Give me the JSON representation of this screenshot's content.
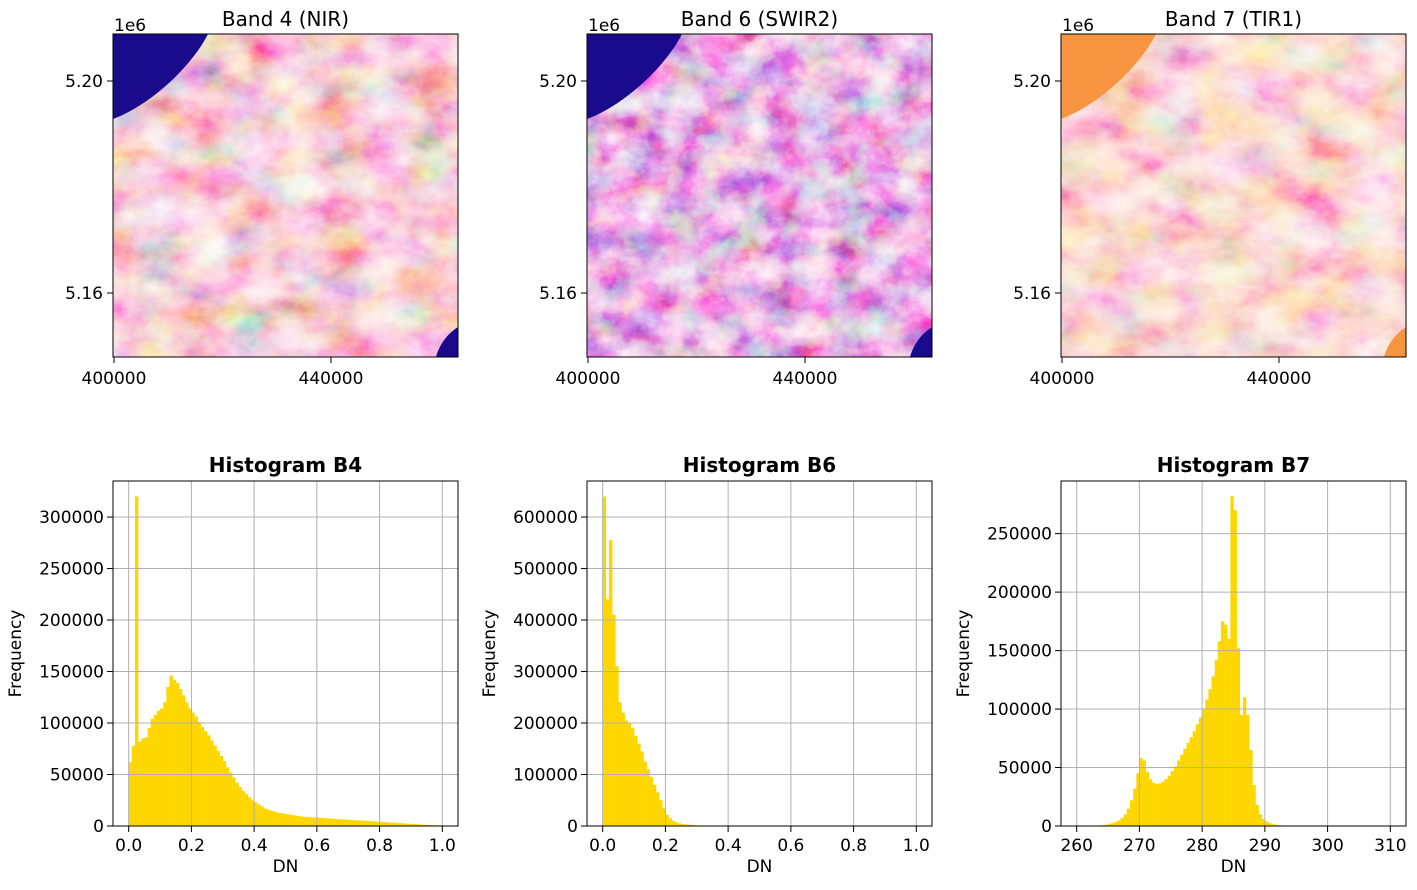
{
  "chart_data": [
    {
      "type": "heatmap",
      "title": "Band 4 (NIR)",
      "colormap": "plasma",
      "x_ticks": [
        "400000",
        "440000"
      ],
      "y_ticks": [
        "5.20",
        "5.16"
      ],
      "y_offset_label": "1e6",
      "water_color": "#1a0a8c"
    },
    {
      "type": "heatmap",
      "title": "Band 6 (SWIR2)",
      "colormap": "plasma",
      "x_ticks": [
        "400000",
        "440000"
      ],
      "y_ticks": [
        "5.20",
        "5.16"
      ],
      "y_offset_label": "1e6",
      "water_color": "#1a0a8c"
    },
    {
      "type": "heatmap",
      "title": "Band 7 (TIR1)",
      "colormap": "plasma",
      "x_ticks": [
        "400000",
        "440000"
      ],
      "y_ticks": [
        "5.20",
        "5.16"
      ],
      "y_offset_label": "1e6",
      "water_color": "#f89540"
    },
    {
      "type": "bar",
      "title": "Histogram B4",
      "xlabel": "DN",
      "ylabel": "Frequency",
      "xlim": [
        -0.05,
        1.05
      ],
      "ylim": [
        0,
        335000
      ],
      "x_ticks": [
        0.0,
        0.2,
        0.4,
        0.6,
        0.8,
        1.0
      ],
      "x_tick_labels": [
        "0.0",
        "0.2",
        "0.4",
        "0.6",
        "0.8",
        "1.0"
      ],
      "y_ticks": [
        0,
        50000,
        100000,
        150000,
        200000,
        250000,
        300000
      ],
      "y_tick_labels": [
        "0",
        "50000",
        "100000",
        "150000",
        "200000",
        "250000",
        "300000"
      ],
      "bin_start": 0.0,
      "bin_width": 0.01,
      "values": [
        62000,
        78000,
        320000,
        82000,
        85000,
        86000,
        95000,
        104000,
        108000,
        112000,
        114000,
        120000,
        135000,
        146000,
        142000,
        139000,
        133000,
        127000,
        120000,
        114000,
        110000,
        106000,
        101000,
        96000,
        92000,
        88000,
        83000,
        78000,
        73000,
        68000,
        63000,
        57000,
        52000,
        47000,
        42000,
        38000,
        34000,
        31000,
        28000,
        25000,
        23000,
        21000,
        19000,
        17000,
        16000,
        15000,
        14000,
        13000,
        12500,
        12000,
        11500,
        11000,
        10500,
        10000,
        9500,
        9000,
        8800,
        8600,
        8400,
        8200,
        8000,
        7800,
        7600,
        7400,
        7200,
        7000,
        6800,
        6600,
        6400,
        6200,
        6000,
        5800,
        5600,
        5400,
        5200,
        5000,
        4800,
        4600,
        4400,
        4200,
        4000,
        3800,
        3600,
        3400,
        3200,
        3000,
        2800,
        2600,
        2400,
        2200,
        2000,
        1800,
        1600,
        1400,
        1200,
        1000,
        900,
        800,
        700,
        600
      ],
      "bar_color": "#ffd700"
    },
    {
      "type": "bar",
      "title": "Histogram B6",
      "xlabel": "DN",
      "ylabel": "Frequency",
      "xlim": [
        -0.05,
        1.05
      ],
      "ylim": [
        0,
        670000
      ],
      "x_ticks": [
        0.0,
        0.2,
        0.4,
        0.6,
        0.8,
        1.0
      ],
      "x_tick_labels": [
        "0.0",
        "0.2",
        "0.4",
        "0.6",
        "0.8",
        "1.0"
      ],
      "y_ticks": [
        0,
        100000,
        200000,
        300000,
        400000,
        500000,
        600000
      ],
      "y_tick_labels": [
        "0",
        "100000",
        "200000",
        "300000",
        "400000",
        "500000",
        "600000"
      ],
      "bin_start": 0.0,
      "bin_width": 0.01,
      "values": [
        640000,
        440000,
        555000,
        410000,
        310000,
        240000,
        220000,
        205000,
        200000,
        190000,
        175000,
        160000,
        145000,
        125000,
        110000,
        95000,
        80000,
        65000,
        50000,
        35000,
        22000,
        15000,
        10000,
        7000,
        5000,
        4000,
        3000,
        2500,
        2000,
        1500,
        1000,
        800,
        600,
        500,
        400,
        300,
        200,
        150,
        100,
        80
      ],
      "bar_color": "#ffd700"
    },
    {
      "type": "bar",
      "title": "Histogram B7",
      "xlabel": "DN",
      "ylabel": "Frequency",
      "xlim": [
        257.5,
        312.5
      ],
      "ylim": [
        0,
        295000
      ],
      "x_ticks": [
        260,
        270,
        280,
        290,
        300,
        310
      ],
      "x_tick_labels": [
        "260",
        "270",
        "280",
        "290",
        "300",
        "310"
      ],
      "y_ticks": [
        0,
        50000,
        100000,
        150000,
        200000,
        250000
      ],
      "y_tick_labels": [
        "0",
        "50000",
        "100000",
        "150000",
        "200000",
        "250000"
      ],
      "bin_start": 263.0,
      "bin_width": 0.5,
      "values": [
        300,
        500,
        800,
        1200,
        1800,
        2500,
        3500,
        5000,
        7000,
        10000,
        15000,
        22000,
        32000,
        45000,
        58000,
        56000,
        46000,
        40000,
        37000,
        36000,
        36500,
        38000,
        40000,
        43000,
        47000,
        51000,
        56000,
        61000,
        66000,
        71000,
        76000,
        81000,
        87000,
        93000,
        100000,
        108000,
        117000,
        128000,
        142000,
        158000,
        175000,
        172000,
        160000,
        282000,
        270000,
        152000,
        95000,
        110000,
        95000,
        65000,
        35000,
        18000,
        10000,
        6000,
        4000,
        2500,
        1500,
        1000,
        700,
        500,
        300,
        200,
        150,
        100,
        80,
        50
      ],
      "bar_color": "#ffd700"
    }
  ]
}
